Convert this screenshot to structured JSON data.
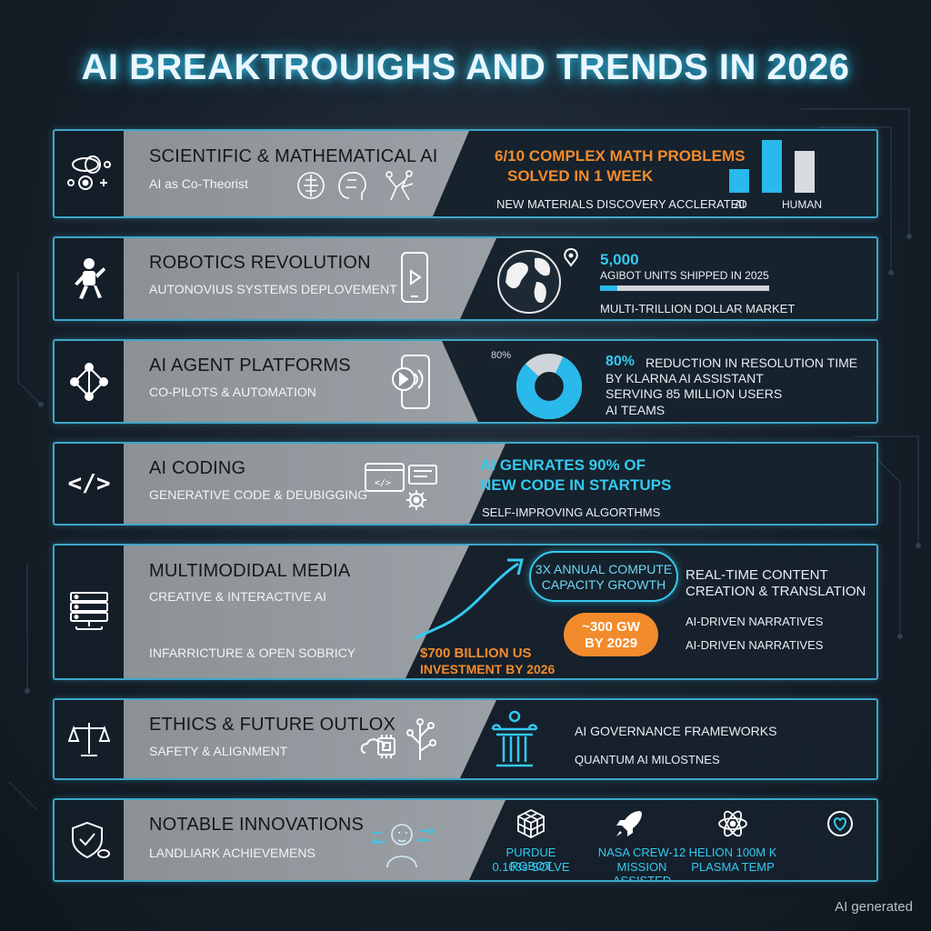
{
  "title": "AI BREAKTROUIGHS AND TRENDS IN 2026",
  "watermark": "AI generated",
  "accent_color": "#34c9f0",
  "highlight_color": "#f28b2c",
  "rows": [
    {
      "heading": "SCIENTIFIC & MATHEMATICAL AI",
      "subtitle": "AI as Co-Theorist",
      "icon": "atom-gear-icon",
      "stat": "6/10 COMPLEX MATH PROBLEMS",
      "stat2": "SOLVED IN 1 WEEK",
      "note": "NEW MATERIALS DISCOVERY ACCLERATED",
      "bar_labels": [
        "AI",
        "HUMAN"
      ]
    },
    {
      "heading": "ROBOTICS REVOLUTION",
      "subtitle": "AUTONOVIUS SYSTEMS DEPLOVEMENT",
      "icon": "robot-icon",
      "stat": "5,000",
      "stat_caption": "AGIBOT UNITS SHIPPED IN 2025",
      "progress": 0.1,
      "note": "MULTI-TRILLION DOLLAR MARKET"
    },
    {
      "heading": "AI AGENT PLATFORMS",
      "subtitle": "CO-PILOTS & AUTOMATION",
      "icon": "network-nodes-icon",
      "donut_label": "80%",
      "donut_value": 0.8,
      "stat_bold": "80%",
      "stat_rest": "REDUCTION IN RESOLUTION TIME",
      "lines": [
        "BY KLARNA AI ASSISTANT",
        "SERVING 85 MILLION USERS",
        "AI TEAMS"
      ]
    },
    {
      "heading": "AI CODING",
      "subtitle": "GENERATIVE CODE & DEUBIGGING",
      "icon": "code-brackets-icon",
      "stat": "AI GENRATES 90% OF",
      "stat2": "NEW CODE IN STARTUPS",
      "note": "SELF-IMPROVING ALGORTHMS"
    },
    {
      "heading": "MULTIMODIDAL MEDIA",
      "subtitle": "CREATIVE & INTERACTIVE AI",
      "subtitle2": "INFARRICTURE & OPEN SOBRICY",
      "icon": "server-icon",
      "investment": "$700 BILLION US",
      "investment2": "INVESTMENT BY 2026",
      "bubble": "3X ANNUAL COMPUTE",
      "bubble2": "CAPACITY GROWTH",
      "pill": "~300 GW",
      "pill2": "BY 2029",
      "right_heading": "REAL-TIME CONTENT",
      "right_heading2": "CREATION & TRANSLATION",
      "right_note1": "AI-DRIVEN NARRATIVES",
      "right_note2": "AI-DRIVEN NARRATIVES"
    },
    {
      "heading": "ETHICS & FUTURE OUTLOX",
      "subtitle": "SAFETY & ALIGNMENT",
      "icon": "scales-icon",
      "stat": "AI GOVERNANCE FRAMEWORKS",
      "note": "QUANTUM AI MILOSTNES"
    },
    {
      "heading": "NOTABLE INNOVATIONS",
      "subtitle": "LANDLIARK ACHIEVEMENS",
      "icon": "shield-check-icon",
      "items": [
        {
          "line1": "PURDUE ROBOT",
          "line2": "0.103s SOLVE",
          "icon": "cube-icon"
        },
        {
          "line1": "NASA CREW-12",
          "line2": "MISSION ASSISTED",
          "icon": "rocket-icon"
        },
        {
          "line1": "HELION 100M K",
          "line2": "PLASMA TEMP",
          "icon": "atom-icon"
        }
      ]
    }
  ]
}
